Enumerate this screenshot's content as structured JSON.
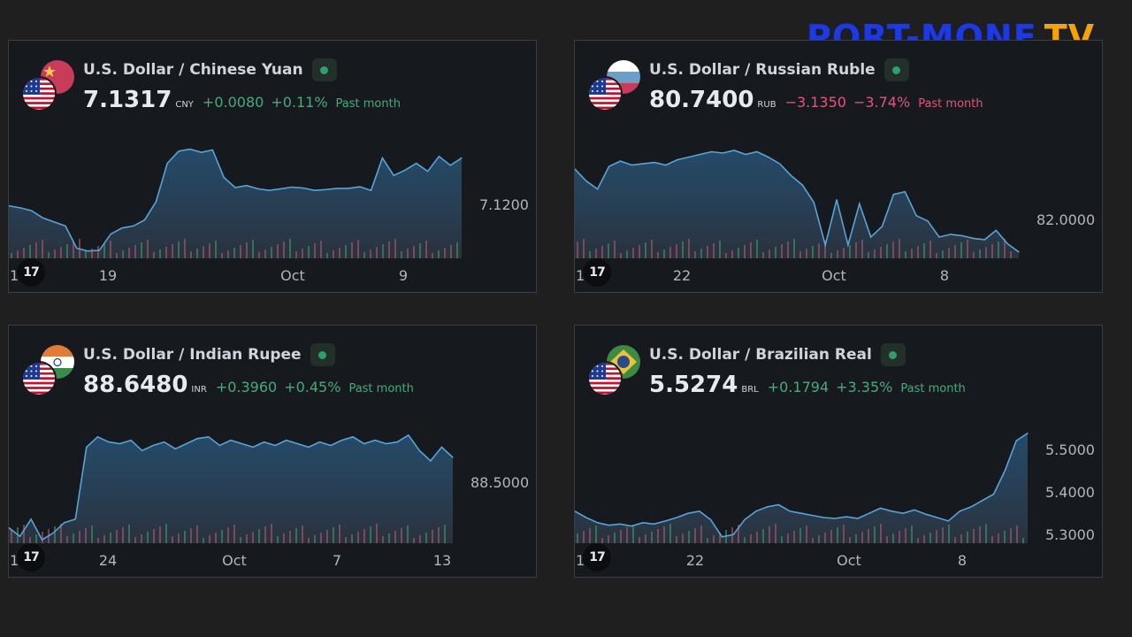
{
  "logo": {
    "main": "PORT-MONE",
    "tv": "TV"
  },
  "tv_badge": "17",
  "edge_label": "1",
  "chart_data": [
    {
      "type": "area",
      "title": "U.S. Dollar / Chinese Yuan",
      "price": "7.1317",
      "currency": "CNY",
      "change": "+0.0080",
      "change_pct": "+0.11%",
      "period": "Past month",
      "direction": "up",
      "y_tick": "7.1200",
      "x_ticks": [
        "19",
        "Oct",
        "9"
      ],
      "values": [
        7.118,
        7.1175,
        7.1168,
        7.115,
        7.114,
        7.113,
        7.1075,
        7.1068,
        7.107,
        7.111,
        7.1125,
        7.113,
        7.1145,
        7.119,
        7.1285,
        7.1315,
        7.132,
        7.1312,
        7.1318,
        7.125,
        7.1225,
        7.123,
        7.1222,
        7.1218,
        7.1222,
        7.1226,
        7.1224,
        7.1218,
        7.122,
        7.1223,
        7.1223,
        7.1227,
        7.1218,
        7.1298,
        7.1255,
        7.1268,
        7.1285,
        7.1265,
        7.1302,
        7.128,
        7.1298
      ]
    },
    {
      "type": "area",
      "title": "U.S. Dollar / Russian Ruble",
      "price": "80.7400",
      "currency": "RUB",
      "change": "−3.1350",
      "change_pct": "−3.74%",
      "period": "Past month",
      "direction": "down",
      "y_tick": "82.0000",
      "x_ticks": [
        "22",
        "Oct",
        "8"
      ],
      "values": [
        83.85,
        83.4,
        83.1,
        83.95,
        84.15,
        84.0,
        84.05,
        84.1,
        84.0,
        84.2,
        84.3,
        84.4,
        84.5,
        84.45,
        84.55,
        84.4,
        84.5,
        84.3,
        84.05,
        83.6,
        83.25,
        82.6,
        81.0,
        82.7,
        81.0,
        82.55,
        81.3,
        81.7,
        82.9,
        83.0,
        82.1,
        81.9,
        81.3,
        81.4,
        81.35,
        81.25,
        81.2,
        81.55,
        81.05,
        80.74
      ]
    },
    {
      "type": "area",
      "title": "U.S. Dollar / Indian Rupee",
      "price": "88.6480",
      "currency": "INR",
      "change": "+0.3960",
      "change_pct": "+0.45%",
      "period": "Past month",
      "direction": "up",
      "y_tick": "88.5000",
      "x_ticks": [
        "24",
        "Oct",
        "7",
        "13"
      ],
      "values": [
        88.25,
        88.2,
        88.3,
        88.18,
        88.22,
        88.28,
        88.3,
        88.72,
        88.78,
        88.75,
        88.74,
        88.76,
        88.7,
        88.73,
        88.75,
        88.71,
        88.74,
        88.77,
        88.78,
        88.73,
        88.76,
        88.74,
        88.72,
        88.75,
        88.73,
        88.76,
        88.74,
        88.72,
        88.75,
        88.73,
        88.76,
        88.78,
        88.74,
        88.76,
        88.74,
        88.75,
        88.79,
        88.7,
        88.64,
        88.72,
        88.66
      ]
    },
    {
      "type": "area",
      "title": "U.S. Dollar / Brazilian Real",
      "price": "5.5274",
      "currency": "BRL",
      "change": "+0.1794",
      "change_pct": "+3.35%",
      "period": "Past month",
      "direction": "up",
      "y_ticks": [
        "5.5000",
        "5.4000",
        "5.3000"
      ],
      "x_ticks": [
        "22",
        "Oct",
        "8"
      ],
      "values": [
        5.345,
        5.33,
        5.318,
        5.312,
        5.315,
        5.31,
        5.318,
        5.315,
        5.322,
        5.33,
        5.34,
        5.345,
        5.325,
        5.285,
        5.29,
        5.325,
        5.345,
        5.355,
        5.36,
        5.345,
        5.34,
        5.335,
        5.33,
        5.328,
        5.332,
        5.328,
        5.34,
        5.352,
        5.345,
        5.34,
        5.348,
        5.338,
        5.33,
        5.322,
        5.345,
        5.355,
        5.37,
        5.385,
        5.44,
        5.51,
        5.5274
      ]
    }
  ]
}
